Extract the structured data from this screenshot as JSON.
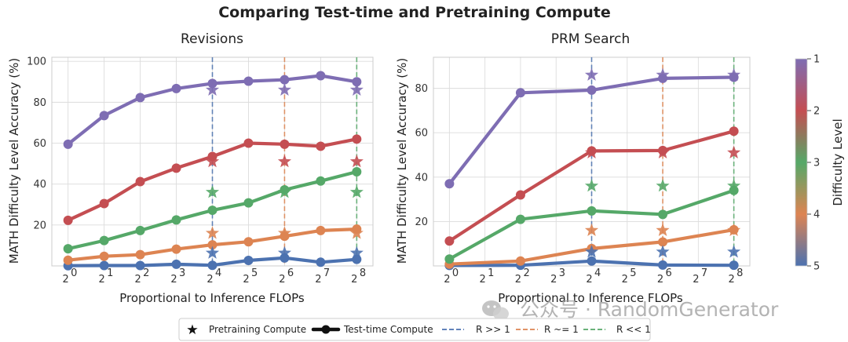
{
  "figure_title": "Comparing Test-time and Pretraining Compute",
  "watermark": "公众号 · RandomGenerator",
  "legend": {
    "pretraining": "Pretraining Compute",
    "testtime": "Test-time Compute",
    "r_gg": "R >> 1",
    "r_eq": "R ~= 1",
    "r_ll": "R << 1"
  },
  "colors": {
    "level1": "#7e6db3",
    "level2": "#c44e52",
    "level3": "#55a868",
    "level4": "#dd8452",
    "level5": "#4c72b0",
    "grid": "#dcdcdc",
    "spine": "#cccccc"
  },
  "colorbar": {
    "label": "Difficulty Level",
    "ticks": [
      "1",
      "2",
      "3",
      "4",
      "5"
    ]
  },
  "chart_data": [
    {
      "type": "line",
      "title": "Revisions",
      "xlabel": "Proportional to Inference FLOPs",
      "ylabel": "MATH Difficulty Level Accuracy (%)",
      "x_exponents": [
        0,
        1,
        2,
        3,
        4,
        5,
        6,
        7,
        8
      ],
      "x_tick_exponents": [
        0,
        1,
        2,
        3,
        4,
        5,
        6,
        7,
        8
      ],
      "ylim": [
        0,
        102
      ],
      "yticks": [
        20,
        40,
        60,
        80,
        100
      ],
      "series": [
        {
          "name": "Level 1",
          "color_key": "level1",
          "values": [
            59.5,
            73.5,
            82.3,
            86.7,
            89.2,
            90.3,
            91,
            93,
            90
          ]
        },
        {
          "name": "Level 2",
          "color_key": "level2",
          "values": [
            22.3,
            30.5,
            41.2,
            47.8,
            53.5,
            60,
            59.5,
            58.5,
            62
          ]
        },
        {
          "name": "Level 3",
          "color_key": "level3",
          "values": [
            8.4,
            12.4,
            17.3,
            22.5,
            27.2,
            30.8,
            37.2,
            41.5,
            46
          ]
        },
        {
          "name": "Level 4",
          "color_key": "level4",
          "values": [
            2.8,
            4.7,
            5.5,
            8.2,
            10.3,
            11.8,
            14.5,
            17.3,
            18
          ]
        },
        {
          "name": "Level 5",
          "color_key": "level5",
          "values": [
            0.1,
            0.2,
            0.2,
            0.8,
            0.3,
            2.7,
            3.9,
            1.8,
            3.2
          ]
        }
      ],
      "pretraining_x_exponents": [
        4,
        6,
        8
      ],
      "pretraining_stars": {
        "level1": [
          86,
          86,
          86
        ],
        "level2": [
          51,
          51,
          51
        ],
        "level3": [
          36,
          36,
          36
        ],
        "level4": [
          16,
          16,
          16
        ],
        "level5": [
          6.3,
          6.3,
          6.3
        ]
      },
      "ratio_lines": [
        {
          "x_exponent": 4,
          "color_key": "level5",
          "label_key": "r_gg"
        },
        {
          "x_exponent": 6,
          "color_key": "level4",
          "label_key": "r_eq"
        },
        {
          "x_exponent": 8,
          "color_key": "level3",
          "label_key": "r_ll"
        }
      ]
    },
    {
      "type": "line",
      "title": "PRM Search",
      "xlabel": "Proportional to Inference FLOPs",
      "ylabel": "MATH Difficulty Level Accuracy (%)",
      "x_exponents": [
        0,
        2,
        4,
        6,
        8
      ],
      "x_tick_exponents": [
        0,
        1,
        2,
        3,
        4,
        5,
        6,
        7,
        8
      ],
      "ylim": [
        0,
        94
      ],
      "yticks": [
        20,
        40,
        60,
        80
      ],
      "series": [
        {
          "name": "Level 1",
          "color_key": "level1",
          "values": [
            37,
            78,
            79.2,
            84.5,
            85
          ]
        },
        {
          "name": "Level 2",
          "color_key": "level2",
          "values": [
            11.2,
            32,
            51.8,
            52,
            60.7
          ]
        },
        {
          "name": "Level 3",
          "color_key": "level3",
          "values": [
            3.1,
            21,
            24.8,
            23.2,
            34
          ]
        },
        {
          "name": "Level 4",
          "color_key": "level4",
          "values": [
            0.8,
            2.2,
            7.8,
            10.8,
            16.3
          ]
        },
        {
          "name": "Level 5",
          "color_key": "level5",
          "values": [
            0.2,
            0.3,
            2.2,
            0.4,
            0.3
          ]
        }
      ],
      "pretraining_x_exponents": [
        4,
        6,
        8
      ],
      "pretraining_stars": {
        "level1": [
          86,
          86,
          86
        ],
        "level2": [
          51,
          51,
          51
        ],
        "level3": [
          36,
          36,
          36
        ],
        "level4": [
          16,
          16,
          16
        ],
        "level5": [
          6.3,
          6.3,
          6.3
        ]
      },
      "ratio_lines": [
        {
          "x_exponent": 4,
          "color_key": "level5",
          "label_key": "r_gg"
        },
        {
          "x_exponent": 6,
          "color_key": "level4",
          "label_key": "r_eq"
        },
        {
          "x_exponent": 8,
          "color_key": "level3",
          "label_key": "r_ll"
        }
      ]
    }
  ]
}
